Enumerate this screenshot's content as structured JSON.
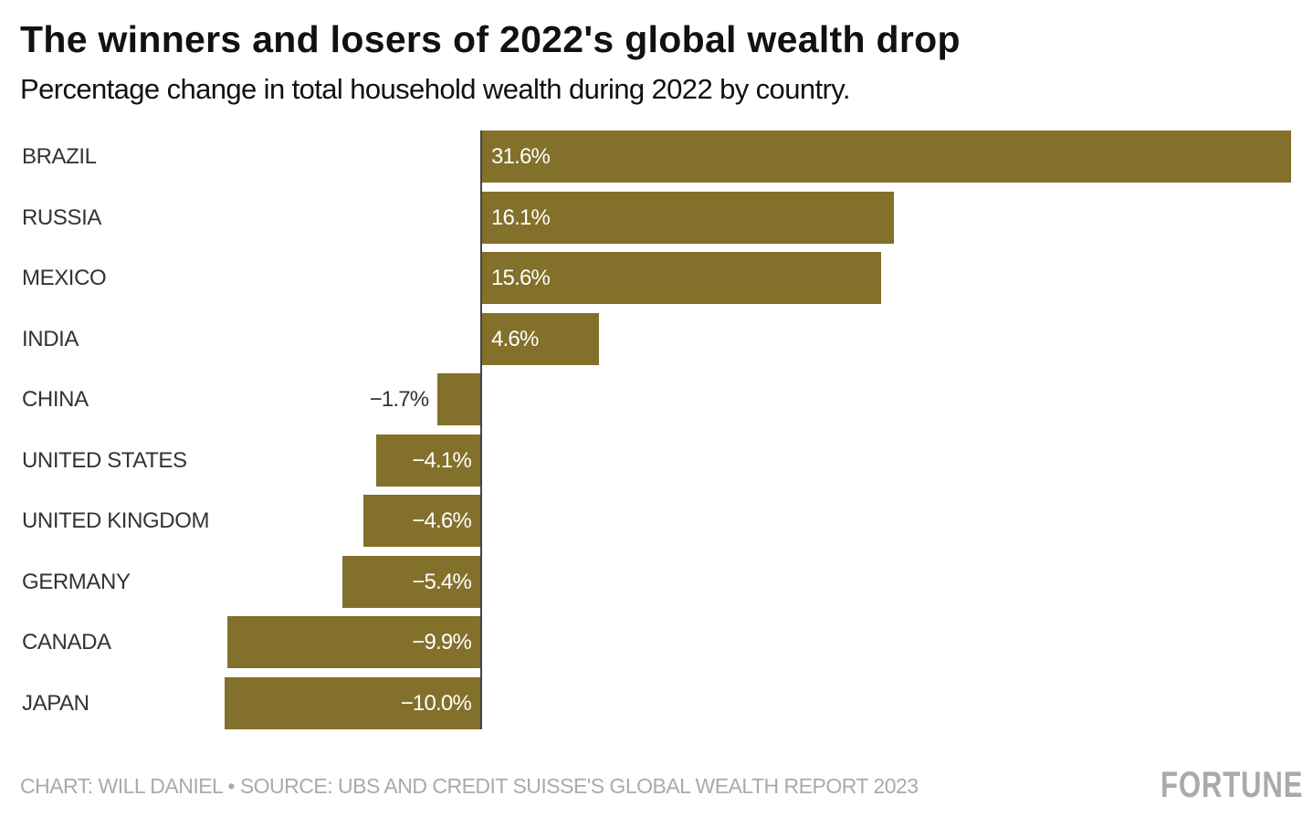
{
  "title": "The winners and losers of 2022's global wealth drop",
  "subtitle": "Percentage change in total household wealth during 2022 by country.",
  "source": "CHART: WILL DANIEL • SOURCE: UBS AND CREDIT SUISSE'S GLOBAL WEALTH REPORT 2023",
  "logo": "FORTUNE",
  "chart_data": {
    "type": "bar",
    "orientation": "horizontal",
    "categories": [
      "BRAZIL",
      "RUSSIA",
      "MEXICO",
      "INDIA",
      "CHINA",
      "UNITED STATES",
      "UNITED KINGDOM",
      "GERMANY",
      "CANADA",
      "JAPAN"
    ],
    "values": [
      31.6,
      16.1,
      15.6,
      4.6,
      -1.7,
      -4.1,
      -4.6,
      -5.4,
      -9.9,
      -10.0
    ],
    "labels": [
      "31.6%",
      "16.1%",
      "15.6%",
      "4.6%",
      "−1.7%",
      "−4.1%",
      "−4.6%",
      "−5.4%",
      "−9.9%",
      "−10.0%"
    ],
    "title": "The winners and losers of 2022's global wealth drop",
    "xlim": [
      -10.0,
      31.6
    ],
    "grid": false,
    "bar_color": "#83702a",
    "zero_line_color": "#444444"
  }
}
